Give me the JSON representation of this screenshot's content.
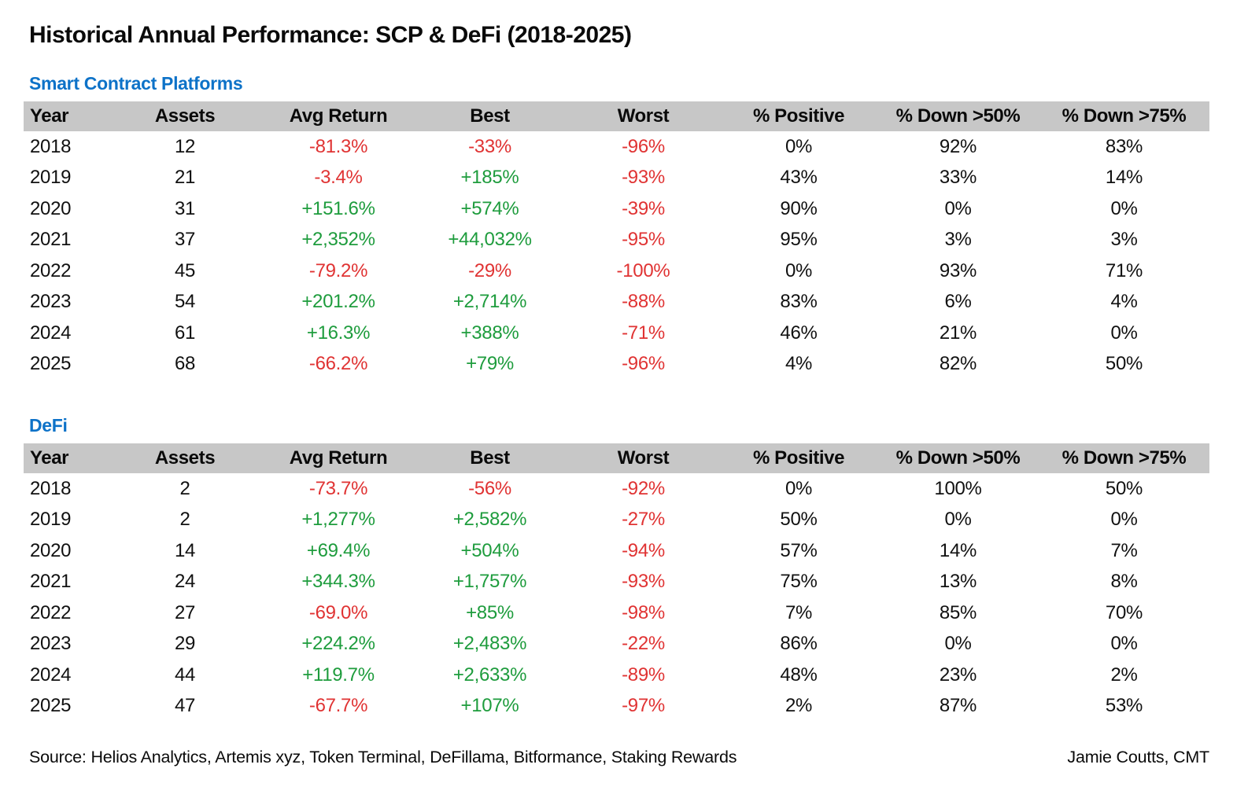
{
  "title": "Historical Annual Performance: SCP & DeFi (2018-2025)",
  "colors": {
    "section_label_blue": "#0d72c8",
    "header_band_gray": "#c7c7c7",
    "positive_green": "#1e9c3d",
    "negative_red": "#e03333",
    "text_black": "#0a0a0a",
    "background": "#ffffff"
  },
  "chart_data": [
    {
      "type": "table",
      "title": "Smart Contract Platforms",
      "columns": [
        "Year",
        "Assets",
        "Avg Return",
        "Best",
        "Worst",
        "% Positive",
        "% Down >50%",
        "% Down >75%"
      ],
      "column_keys": [
        "year",
        "assets",
        "avg-return",
        "best",
        "worst",
        "pct-positive",
        "pct-down-50",
        "pct-down-75"
      ],
      "rows": [
        [
          "2018",
          "12",
          "-81.3%",
          "-33%",
          "-96%",
          "0%",
          "92%",
          "83%"
        ],
        [
          "2019",
          "21",
          "-3.4%",
          "+185%",
          "-93%",
          "43%",
          "33%",
          "14%"
        ],
        [
          "2020",
          "31",
          "+151.6%",
          "+574%",
          "-39%",
          "90%",
          "0%",
          "0%"
        ],
        [
          "2021",
          "37",
          "+2,352%",
          "+44,032%",
          "-95%",
          "95%",
          "3%",
          "3%"
        ],
        [
          "2022",
          "45",
          "-79.2%",
          "-29%",
          "-100%",
          "0%",
          "93%",
          "71%"
        ],
        [
          "2023",
          "54",
          "+201.2%",
          "+2,714%",
          "-88%",
          "83%",
          "6%",
          "4%"
        ],
        [
          "2024",
          "61",
          "+16.3%",
          "+388%",
          "-71%",
          "46%",
          "21%",
          "0%"
        ],
        [
          "2025",
          "68",
          "-66.2%",
          "+79%",
          "-96%",
          "4%",
          "82%",
          "50%"
        ]
      ]
    },
    {
      "type": "table",
      "title": "DeFi",
      "columns": [
        "Year",
        "Assets",
        "Avg Return",
        "Best",
        "Worst",
        "% Positive",
        "% Down >50%",
        "% Down >75%"
      ],
      "column_keys": [
        "year",
        "assets",
        "avg-return",
        "best",
        "worst",
        "pct-positive",
        "pct-down-50",
        "pct-down-75"
      ],
      "rows": [
        [
          "2018",
          "2",
          "-73.7%",
          "-56%",
          "-92%",
          "0%",
          "100%",
          "50%"
        ],
        [
          "2019",
          "2",
          "+1,277%",
          "+2,582%",
          "-27%",
          "50%",
          "0%",
          "0%"
        ],
        [
          "2020",
          "14",
          "+69.4%",
          "+504%",
          "-94%",
          "57%",
          "14%",
          "7%"
        ],
        [
          "2021",
          "24",
          "+344.3%",
          "+1,757%",
          "-93%",
          "75%",
          "13%",
          "8%"
        ],
        [
          "2022",
          "27",
          "-69.0%",
          "+85%",
          "-98%",
          "7%",
          "85%",
          "70%"
        ],
        [
          "2023",
          "29",
          "+224.2%",
          "+2,483%",
          "-22%",
          "86%",
          "0%",
          "0%"
        ],
        [
          "2024",
          "44",
          "+119.7%",
          "+2,633%",
          "-89%",
          "48%",
          "23%",
          "2%"
        ],
        [
          "2025",
          "47",
          "-67.7%",
          "+107%",
          "-97%",
          "2%",
          "87%",
          "53%"
        ]
      ]
    }
  ],
  "footer": {
    "source": "Source: Helios Analytics, Artemis xyz, Token Terminal, DeFillama, Bitformance, Staking Rewards",
    "author": "Jamie Coutts, CMT"
  }
}
